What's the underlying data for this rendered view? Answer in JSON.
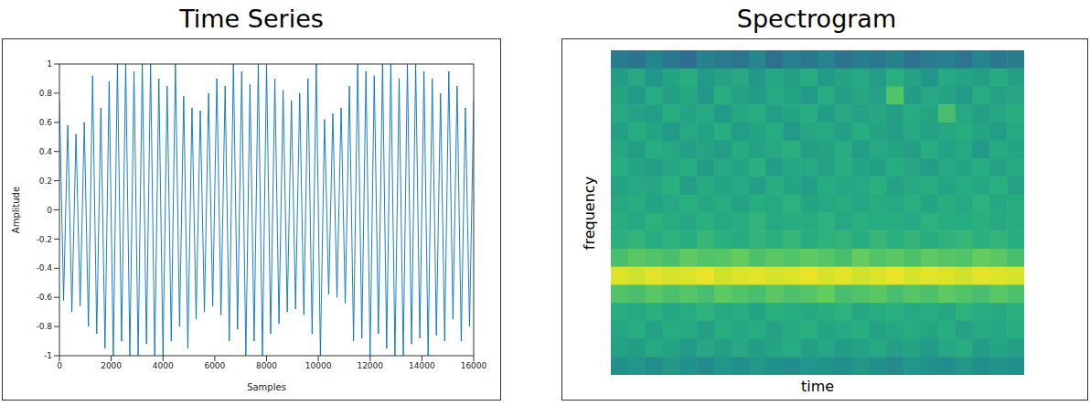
{
  "chart_data": [
    {
      "type": "line",
      "title": "Time Series",
      "x_label": "Samples",
      "y_label": "Amplitude",
      "color": "#0072bd",
      "x": [
        0,
        160,
        320,
        480,
        640,
        800,
        960,
        1120,
        1280,
        1440,
        1600,
        1760,
        1920,
        2080,
        2240,
        2400,
        2560,
        2720,
        2880,
        3040,
        3200,
        3360,
        3520,
        3680,
        3840,
        4000,
        4160,
        4320,
        4480,
        4640,
        4800,
        4960,
        5120,
        5280,
        5440,
        5600,
        5760,
        5920,
        6080,
        6240,
        6400,
        6560,
        6720,
        6880,
        7040,
        7200,
        7360,
        7520,
        7680,
        7840,
        8000,
        8160,
        8320,
        8480,
        8640,
        8800,
        8960,
        9120,
        9280,
        9440,
        9600,
        9760,
        9920,
        10080,
        10240,
        10400,
        10560,
        10720,
        10880,
        11040,
        11200,
        11360,
        11520,
        11680,
        11840,
        12000,
        12160,
        12320,
        12480,
        12640,
        12800,
        12960,
        13120,
        13280,
        13440,
        13600,
        13760,
        13920,
        14080,
        14240,
        14400,
        14560,
        14720,
        14880,
        15040,
        15200,
        15360,
        15520,
        15680,
        15840,
        16000
      ],
      "values": [
        0.75,
        -0.62,
        0.58,
        -0.7,
        0.52,
        -0.66,
        0.6,
        -0.8,
        0.92,
        -0.85,
        0.7,
        -0.95,
        0.88,
        -1,
        1,
        -0.9,
        1,
        -1,
        0.95,
        -1,
        1,
        -0.92,
        1,
        -1,
        0.9,
        -1,
        0.85,
        -0.9,
        1,
        -0.8,
        0.78,
        -0.95,
        0.7,
        -0.75,
        0.68,
        -0.7,
        0.8,
        -0.66,
        0.9,
        -0.72,
        0.85,
        -0.9,
        1,
        -0.82,
        0.95,
        -1,
        0.86,
        -0.9,
        1,
        -1,
        1,
        -0.85,
        0.9,
        -0.78,
        0.82,
        -0.7,
        0.75,
        -0.68,
        0.8,
        -0.72,
        0.9,
        -0.85,
        1,
        -1,
        0.62,
        -0.58,
        0.66,
        -0.6,
        0.7,
        -0.64,
        0.85,
        -0.9,
        1,
        -0.88,
        0.95,
        -1,
        0.92,
        -0.85,
        1,
        -0.95,
        1,
        -1,
        0.9,
        -1,
        1,
        -0.92,
        1,
        -0.88,
        0.95,
        -1,
        0.9,
        -0.86,
        0.8,
        -0.9,
        0.95,
        -0.75,
        0.85,
        -0.9,
        0.7,
        -0.8,
        0.75
      ],
      "xlim": [
        0,
        16000
      ],
      "ylim": [
        -1,
        1
      ],
      "xticks": [
        0,
        2000,
        4000,
        6000,
        8000,
        10000,
        12000,
        14000,
        16000
      ],
      "yticks": [
        -1,
        -0.8,
        -0.6,
        -0.4,
        -0.2,
        0,
        0.2,
        0.4,
        0.6,
        0.8,
        1
      ]
    },
    {
      "type": "heatmap",
      "title": "Spectrogram",
      "x_label": "time",
      "y_label": "frequency",
      "tick_labels": false,
      "zlim": [
        0,
        1
      ],
      "cells": [
        [
          0.42,
          0.38,
          0.45,
          0.4,
          0.36,
          0.44,
          0.41,
          0.39,
          0.46,
          0.37,
          0.43,
          0.4,
          0.45,
          0.38,
          0.42,
          0.4,
          0.44,
          0.37,
          0.41,
          0.43,
          0.39,
          0.45,
          0.4,
          0.42
        ],
        [
          0.55,
          0.6,
          0.52,
          0.58,
          0.62,
          0.54,
          0.57,
          0.6,
          0.53,
          0.59,
          0.56,
          0.61,
          0.54,
          0.58,
          0.6,
          0.55,
          0.63,
          0.57,
          0.52,
          0.6,
          0.58,
          0.55,
          0.61,
          0.56
        ],
        [
          0.58,
          0.54,
          0.61,
          0.56,
          0.59,
          0.53,
          0.62,
          0.57,
          0.55,
          0.6,
          0.58,
          0.54,
          0.61,
          0.56,
          0.59,
          0.57,
          0.72,
          0.55,
          0.6,
          0.58,
          0.54,
          0.61,
          0.57,
          0.59
        ],
        [
          0.6,
          0.57,
          0.55,
          0.62,
          0.58,
          0.6,
          0.54,
          0.59,
          0.61,
          0.56,
          0.58,
          0.62,
          0.55,
          0.6,
          0.57,
          0.59,
          0.56,
          0.61,
          0.58,
          0.7,
          0.6,
          0.56,
          0.59,
          0.62
        ],
        [
          0.56,
          0.61,
          0.58,
          0.54,
          0.6,
          0.57,
          0.62,
          0.55,
          0.58,
          0.61,
          0.54,
          0.59,
          0.6,
          0.56,
          0.62,
          0.58,
          0.55,
          0.6,
          0.57,
          0.59,
          0.62,
          0.58,
          0.55,
          0.6
        ],
        [
          0.59,
          0.55,
          0.62,
          0.6,
          0.56,
          0.58,
          0.55,
          0.61,
          0.57,
          0.6,
          0.63,
          0.56,
          0.58,
          0.61,
          0.55,
          0.6,
          0.58,
          0.56,
          0.62,
          0.57,
          0.6,
          0.54,
          0.61,
          0.58
        ],
        [
          0.62,
          0.58,
          0.56,
          0.59,
          0.61,
          0.55,
          0.6,
          0.58,
          0.63,
          0.55,
          0.59,
          0.6,
          0.57,
          0.62,
          0.58,
          0.56,
          0.61,
          0.59,
          0.55,
          0.6,
          0.58,
          0.62,
          0.57,
          0.6
        ],
        [
          0.57,
          0.6,
          0.59,
          0.63,
          0.56,
          0.61,
          0.58,
          0.6,
          0.56,
          0.62,
          0.58,
          0.55,
          0.61,
          0.59,
          0.6,
          0.63,
          0.57,
          0.6,
          0.62,
          0.58,
          0.61,
          0.59,
          0.63,
          0.57
        ],
        [
          0.6,
          0.62,
          0.58,
          0.6,
          0.63,
          0.59,
          0.61,
          0.57,
          0.62,
          0.6,
          0.64,
          0.58,
          0.6,
          0.62,
          0.59,
          0.61,
          0.6,
          0.63,
          0.58,
          0.62,
          0.6,
          0.64,
          0.59,
          0.61
        ],
        [
          0.62,
          0.6,
          0.64,
          0.61,
          0.59,
          0.63,
          0.6,
          0.62,
          0.65,
          0.6,
          0.62,
          0.61,
          0.64,
          0.6,
          0.63,
          0.61,
          0.62,
          0.6,
          0.64,
          0.62,
          0.61,
          0.63,
          0.6,
          0.62
        ],
        [
          0.63,
          0.65,
          0.61,
          0.64,
          0.62,
          0.66,
          0.63,
          0.61,
          0.65,
          0.63,
          0.66,
          0.62,
          0.64,
          0.65,
          0.62,
          0.66,
          0.63,
          0.65,
          0.62,
          0.64,
          0.66,
          0.63,
          0.65,
          0.62
        ],
        [
          0.7,
          0.74,
          0.72,
          0.7,
          0.75,
          0.72,
          0.73,
          0.76,
          0.71,
          0.74,
          0.72,
          0.75,
          0.73,
          0.7,
          0.76,
          0.72,
          0.74,
          0.71,
          0.75,
          0.73,
          0.72,
          0.76,
          0.74,
          0.7
        ],
        [
          0.95,
          0.93,
          0.96,
          0.94,
          0.95,
          0.97,
          0.93,
          0.95,
          0.96,
          0.94,
          0.95,
          0.97,
          0.94,
          0.96,
          0.93,
          0.95,
          0.97,
          0.94,
          0.96,
          0.95,
          0.93,
          0.96,
          0.95,
          0.94
        ],
        [
          0.72,
          0.7,
          0.74,
          0.71,
          0.73,
          0.7,
          0.75,
          0.72,
          0.7,
          0.74,
          0.71,
          0.73,
          0.76,
          0.7,
          0.72,
          0.74,
          0.7,
          0.73,
          0.71,
          0.75,
          0.72,
          0.7,
          0.74,
          0.71
        ],
        [
          0.62,
          0.6,
          0.63,
          0.59,
          0.61,
          0.64,
          0.6,
          0.62,
          0.58,
          0.63,
          0.61,
          0.6,
          0.62,
          0.64,
          0.59,
          0.61,
          0.63,
          0.6,
          0.62,
          0.59,
          0.64,
          0.61,
          0.6,
          0.63
        ],
        [
          0.59,
          0.62,
          0.57,
          0.61,
          0.6,
          0.56,
          0.62,
          0.59,
          0.61,
          0.57,
          0.6,
          0.63,
          0.58,
          0.6,
          0.62,
          0.57,
          0.59,
          0.61,
          0.58,
          0.62,
          0.57,
          0.6,
          0.59,
          0.61
        ],
        [
          0.57,
          0.55,
          0.6,
          0.58,
          0.54,
          0.59,
          0.56,
          0.6,
          0.55,
          0.58,
          0.61,
          0.56,
          0.59,
          0.55,
          0.57,
          0.6,
          0.56,
          0.58,
          0.54,
          0.59,
          0.61,
          0.55,
          0.58,
          0.56
        ],
        [
          0.5,
          0.52,
          0.48,
          0.53,
          0.5,
          0.47,
          0.52,
          0.49,
          0.53,
          0.5,
          0.48,
          0.52,
          0.51,
          0.49,
          0.53,
          0.5,
          0.47,
          0.52,
          0.5,
          0.48,
          0.53,
          0.49,
          0.51,
          0.5
        ]
      ]
    }
  ]
}
